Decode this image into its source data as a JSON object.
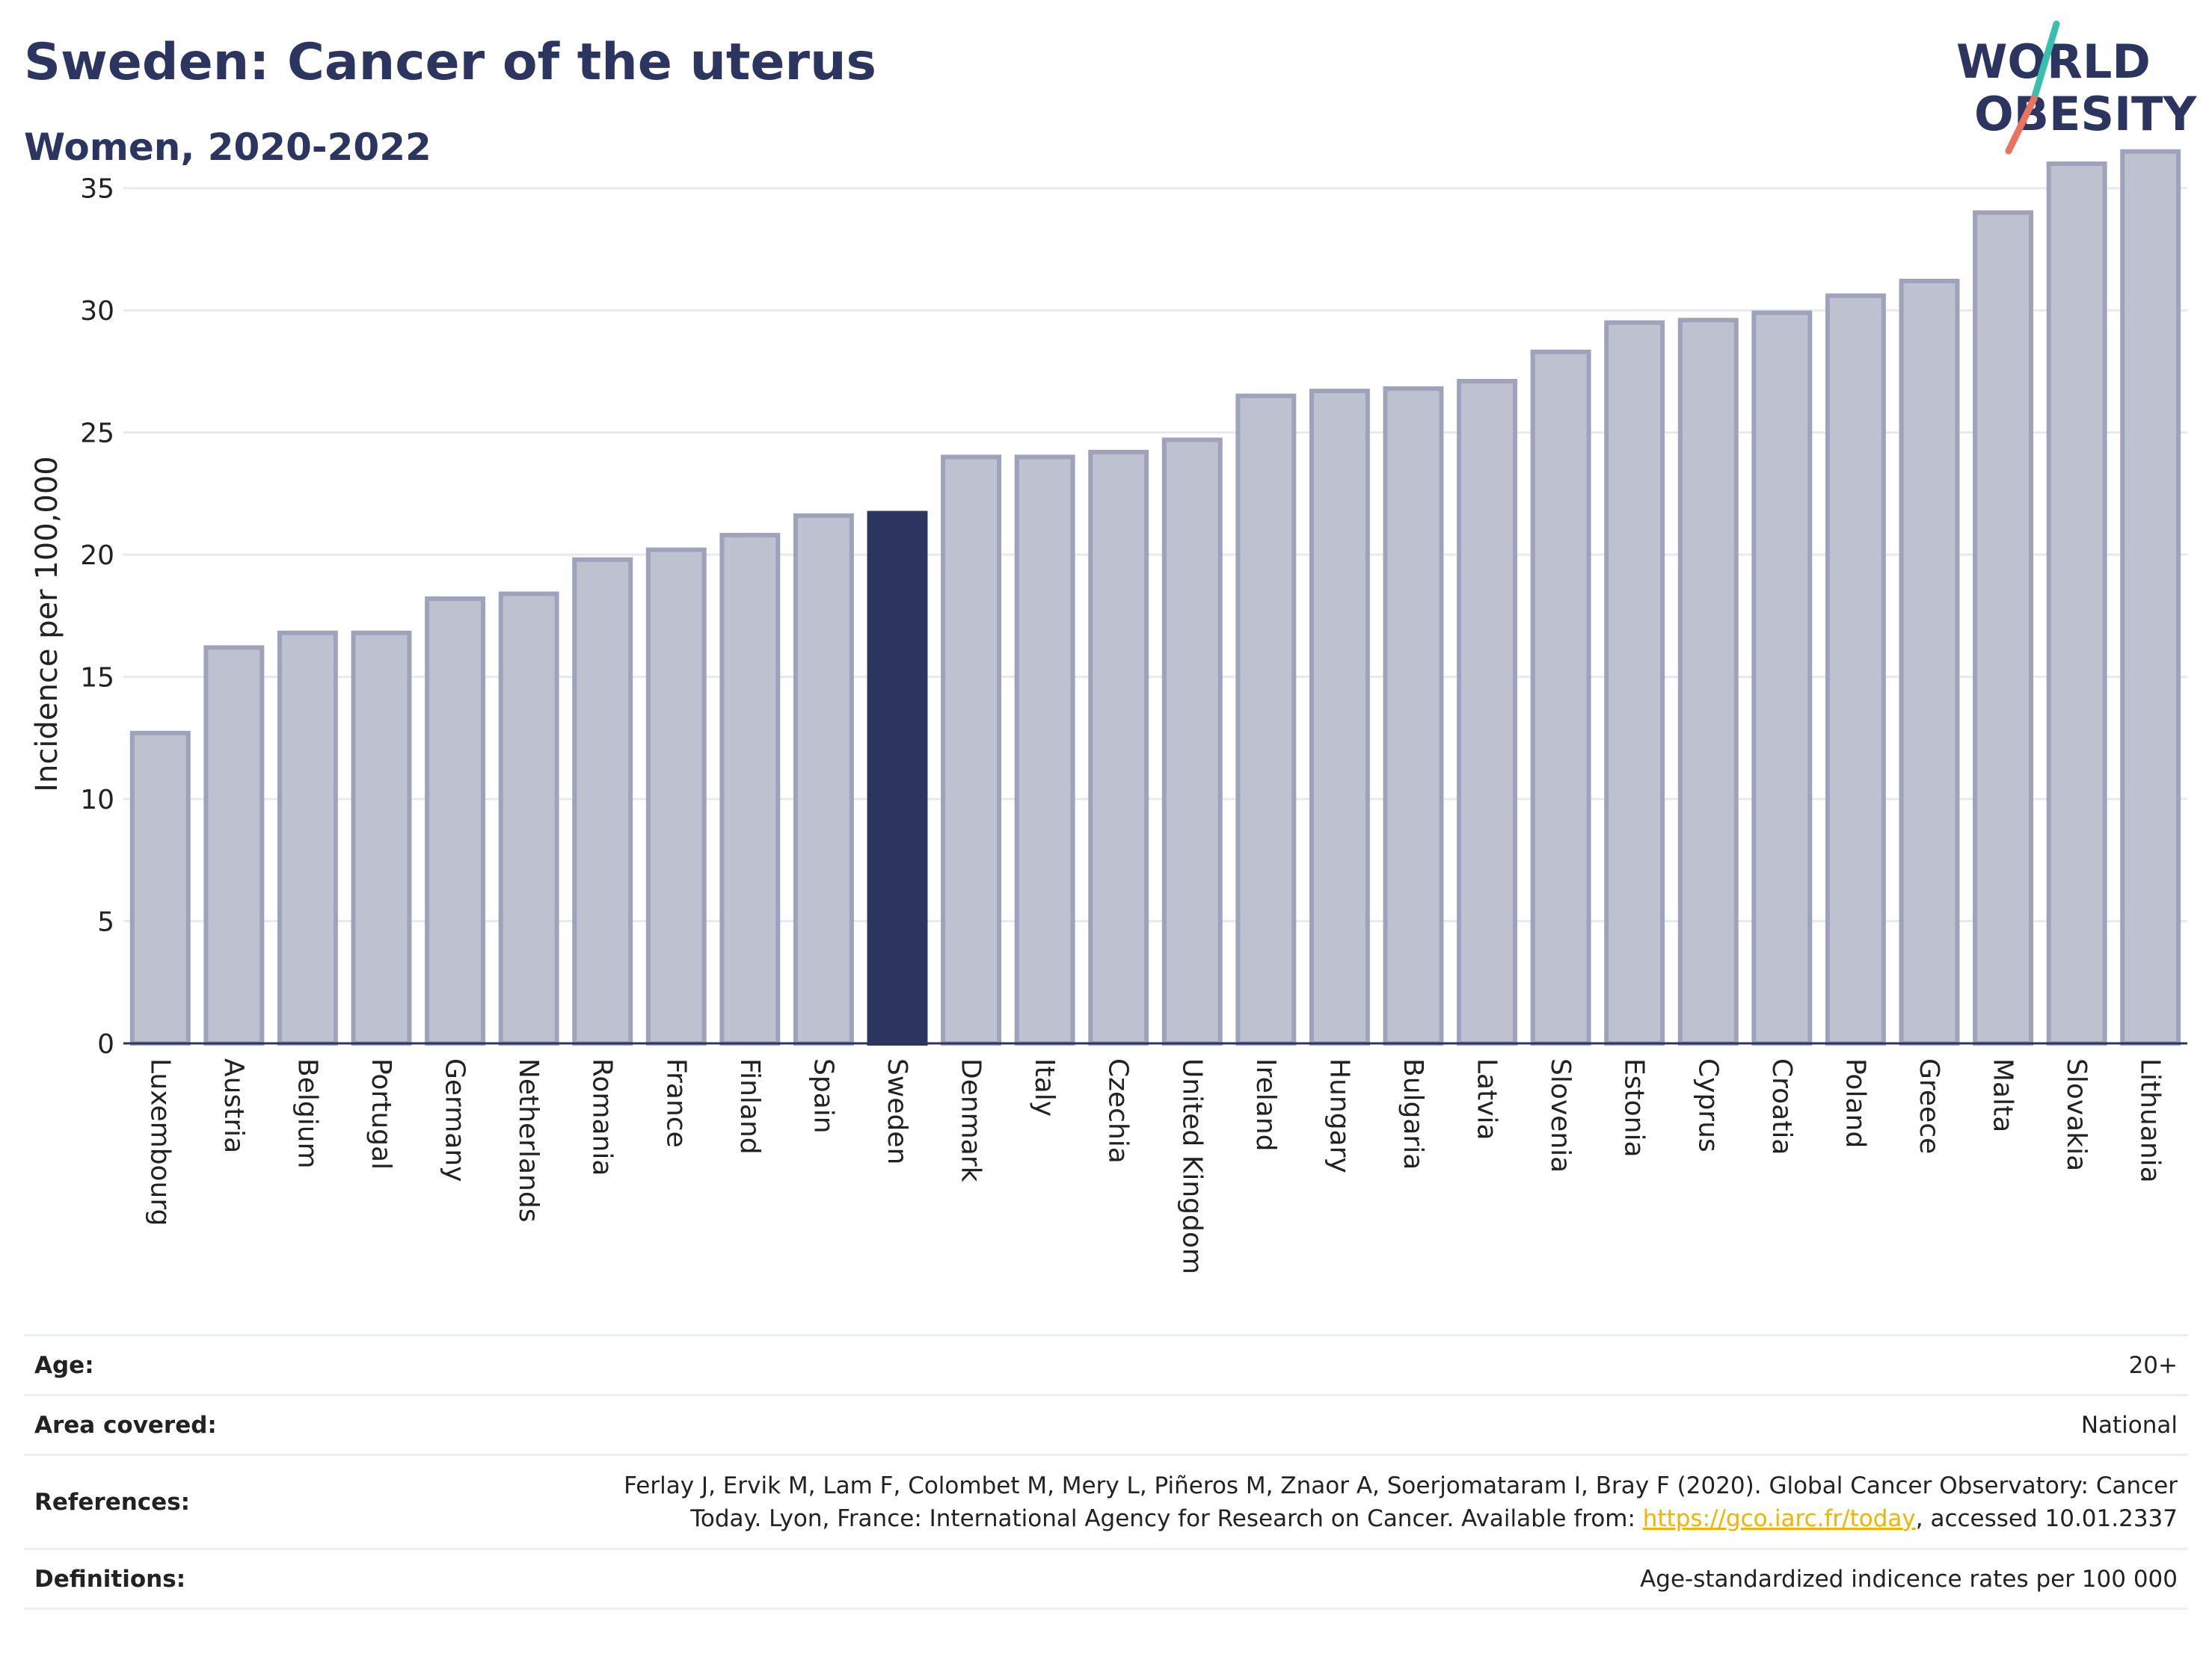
{
  "title": "Sweden: Cancer of the uterus",
  "subtitle": "Women, 2020-2022",
  "logo": {
    "line1": "WORLD",
    "line2": "OBESITY",
    "color": "#2b3560",
    "slash_colors": [
      "#3bbfad",
      "#e8735e"
    ]
  },
  "colors": {
    "bar": "#bec1cf",
    "bar_outline": "#9ea3bb",
    "highlight": "#2b3560",
    "grid": "#e8e9ef",
    "axis": "#2b3560"
  },
  "chart_data": {
    "type": "bar",
    "ylabel": "Incidence per 100,000",
    "ylim": [
      0,
      37.5
    ],
    "yticks": [
      0,
      5,
      10,
      15,
      20,
      25,
      30,
      35
    ],
    "grid": true,
    "highlight": "Sweden",
    "categories": [
      "Luxembourg",
      "Austria",
      "Belgium",
      "Portugal",
      "Germany",
      "Netherlands",
      "Romania",
      "France",
      "Finland",
      "Spain",
      "Sweden",
      "Denmark",
      "Italy",
      "Czechia",
      "United Kingdom",
      "Ireland",
      "Hungary",
      "Bulgaria",
      "Latvia",
      "Slovenia",
      "Estonia",
      "Cyprus",
      "Croatia",
      "Poland",
      "Greece",
      "Malta",
      "Slovakia",
      "Lithuania"
    ],
    "values": [
      12.7,
      16.2,
      16.8,
      16.8,
      18.2,
      18.4,
      19.8,
      20.2,
      20.8,
      21.6,
      21.7,
      24.0,
      24.0,
      24.2,
      24.7,
      26.5,
      26.7,
      26.8,
      27.1,
      28.3,
      29.5,
      29.6,
      29.9,
      30.6,
      31.2,
      34.0,
      36.0,
      36.5
    ]
  },
  "meta": {
    "age_label": "Age:",
    "age_value": "20+",
    "area_label": "Area covered:",
    "area_value": "National",
    "ref_label": "References:",
    "ref_text_1": "Ferlay J, Ervik M, Lam F, Colombet M, Mery L, Piñeros M, Znaor A, Soerjomataram I, Bray F (2020). Global Cancer Observatory: Cancer",
    "ref_text_2": "Today. Lyon, France: International Agency for Research on Cancer. Available from: ",
    "ref_link": "https://gco.iarc.fr/today",
    "ref_text_3": ", accessed 10.01.2337",
    "def_label": "Definitions:",
    "def_value": "Age-standardized indicence rates per 100 000"
  }
}
